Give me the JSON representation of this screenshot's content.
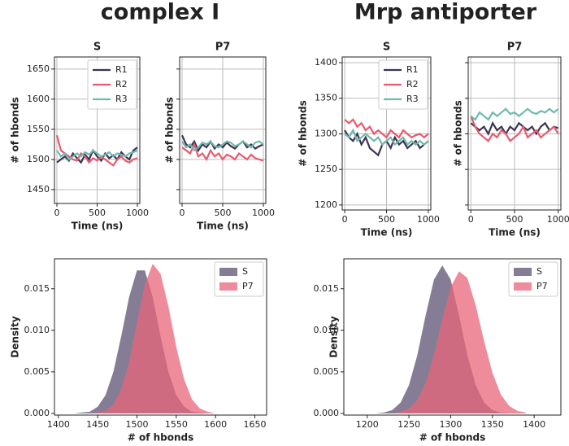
{
  "column_titles": [
    "complex I",
    "Mrp antiporter"
  ],
  "chart_data": [
    {
      "type": "line",
      "title": "S",
      "xlabel": "Time (ns)",
      "ylabel": "# of hbonds",
      "grid": true,
      "legend": "upper right",
      "show_ytick_labels": true,
      "x": [
        0,
        50,
        100,
        150,
        200,
        250,
        300,
        350,
        400,
        450,
        500,
        550,
        600,
        650,
        700,
        750,
        800,
        850,
        900,
        950,
        1000
      ],
      "xlim": [
        -30,
        1030
      ],
      "xticks": [
        0,
        500,
        1000
      ],
      "ylim": [
        1427,
        1670
      ],
      "yticks": [
        1450,
        1500,
        1550,
        1600,
        1650
      ],
      "series": [
        {
          "name": "R1",
          "color": "#3d3452",
          "values": [
            1495,
            1500,
            1505,
            1498,
            1510,
            1502,
            1495,
            1508,
            1500,
            1515,
            1505,
            1498,
            1510,
            1502,
            1507,
            1500,
            1512,
            1505,
            1500,
            1515,
            1520
          ]
        },
        {
          "name": "R2",
          "color": "#e8596e",
          "values": [
            1540,
            1515,
            1510,
            1505,
            1500,
            1498,
            1510,
            1505,
            1495,
            1502,
            1498,
            1505,
            1500,
            1495,
            1490,
            1500,
            1505,
            1498,
            1495,
            1500,
            1502
          ]
        },
        {
          "name": "R3",
          "color": "#6fb9ad",
          "values": [
            1515,
            1505,
            1510,
            1500,
            1505,
            1510,
            1505,
            1512,
            1508,
            1515,
            1510,
            1505,
            1508,
            1512,
            1505,
            1510,
            1508,
            1505,
            1510,
            1512,
            1515
          ]
        }
      ]
    },
    {
      "type": "line",
      "title": "P7",
      "xlabel": "Time (ns)",
      "ylabel": "# of hbonds",
      "grid": true,
      "show_ytick_labels": false,
      "x": [
        0,
        50,
        100,
        150,
        200,
        250,
        300,
        350,
        400,
        450,
        500,
        550,
        600,
        650,
        700,
        750,
        800,
        850,
        900,
        950,
        1000
      ],
      "xlim": [
        -30,
        1030
      ],
      "xticks": [
        0,
        500,
        1000
      ],
      "ylim": [
        1427,
        1670
      ],
      "yticks": [
        1450,
        1500,
        1550,
        1600,
        1650
      ],
      "series": [
        {
          "name": "R1",
          "color": "#3d3452",
          "values": [
            1540,
            1525,
            1520,
            1530,
            1515,
            1525,
            1520,
            1530,
            1518,
            1525,
            1520,
            1528,
            1522,
            1518,
            1525,
            1530,
            1520,
            1525,
            1518,
            1522,
            1525
          ]
        },
        {
          "name": "R2",
          "color": "#e8596e",
          "values": [
            1520,
            1515,
            1510,
            1525,
            1505,
            1510,
            1500,
            1515,
            1505,
            1510,
            1500,
            1508,
            1505,
            1500,
            1510,
            1505,
            1500,
            1508,
            1502,
            1500,
            1498
          ]
        },
        {
          "name": "R3",
          "color": "#6fb9ad",
          "values": [
            1530,
            1520,
            1525,
            1515,
            1520,
            1528,
            1525,
            1530,
            1522,
            1520,
            1525,
            1530,
            1528,
            1522,
            1525,
            1530,
            1525,
            1520,
            1528,
            1530,
            1525
          ]
        }
      ]
    },
    {
      "type": "line",
      "title": "S",
      "xlabel": "Time (ns)",
      "ylabel": "# of hbonds",
      "grid": true,
      "legend": "upper right",
      "show_ytick_labels": true,
      "x": [
        0,
        50,
        100,
        150,
        200,
        250,
        300,
        350,
        400,
        450,
        500,
        550,
        600,
        650,
        700,
        750,
        800,
        850,
        900,
        950,
        1000
      ],
      "xlim": [
        -30,
        1030
      ],
      "xticks": [
        0,
        500,
        1000
      ],
      "ylim": [
        1193,
        1408
      ],
      "yticks": [
        1200,
        1250,
        1300,
        1350,
        1400
      ],
      "series": [
        {
          "name": "R1",
          "color": "#3d3452",
          "values": [
            1305,
            1295,
            1290,
            1300,
            1285,
            1295,
            1280,
            1275,
            1270,
            1285,
            1290,
            1280,
            1295,
            1285,
            1290,
            1280,
            1285,
            1290,
            1280,
            1285,
            1290
          ]
        },
        {
          "name": "R2",
          "color": "#e8596e",
          "values": [
            1320,
            1315,
            1320,
            1310,
            1315,
            1305,
            1310,
            1300,
            1305,
            1300,
            1295,
            1305,
            1300,
            1295,
            1305,
            1300,
            1295,
            1298,
            1300,
            1295,
            1300
          ]
        },
        {
          "name": "R3",
          "color": "#6fb9ad",
          "values": [
            1300,
            1295,
            1305,
            1290,
            1295,
            1300,
            1295,
            1290,
            1295,
            1285,
            1290,
            1295,
            1285,
            1290,
            1295,
            1285,
            1290,
            1285,
            1290,
            1285,
            1290
          ]
        }
      ]
    },
    {
      "type": "line",
      "title": "P7",
      "xlabel": "Time (ns)",
      "ylabel": "# of hbonds",
      "grid": true,
      "show_ytick_labels": false,
      "x": [
        0,
        50,
        100,
        150,
        200,
        250,
        300,
        350,
        400,
        450,
        500,
        550,
        600,
        650,
        700,
        750,
        800,
        850,
        900,
        950,
        1000
      ],
      "xlim": [
        -30,
        1030
      ],
      "xticks": [
        0,
        500,
        1000
      ],
      "ylim": [
        1193,
        1408
      ],
      "yticks": [
        1200,
        1250,
        1300,
        1350,
        1400
      ],
      "series": [
        {
          "name": "R1",
          "color": "#3d3452",
          "values": [
            1315,
            1310,
            1305,
            1310,
            1300,
            1315,
            1305,
            1310,
            1300,
            1310,
            1305,
            1315,
            1310,
            1305,
            1310,
            1300,
            1310,
            1315,
            1305,
            1310,
            1308
          ]
        },
        {
          "name": "R2",
          "color": "#e8596e",
          "values": [
            1325,
            1310,
            1300,
            1295,
            1290,
            1300,
            1295,
            1305,
            1300,
            1290,
            1295,
            1300,
            1310,
            1295,
            1300,
            1305,
            1295,
            1300,
            1305,
            1310,
            1300
          ]
        },
        {
          "name": "R3",
          "color": "#6fb9ad",
          "values": [
            1325,
            1320,
            1330,
            1325,
            1320,
            1330,
            1325,
            1330,
            1335,
            1328,
            1330,
            1325,
            1330,
            1335,
            1330,
            1328,
            1332,
            1330,
            1335,
            1330,
            1335
          ]
        }
      ]
    },
    {
      "type": "area",
      "xlabel": "# of hbonds",
      "ylabel": "Density",
      "grid": false,
      "legend": "upper right",
      "show_ytick_labels": true,
      "x": [
        1420,
        1430,
        1440,
        1450,
        1460,
        1470,
        1480,
        1490,
        1500,
        1510,
        1520,
        1530,
        1540,
        1550,
        1560,
        1570,
        1580,
        1590,
        1600,
        1610,
        1620
      ],
      "xlim": [
        1395,
        1665
      ],
      "xticks": [
        1400,
        1450,
        1500,
        1550,
        1600,
        1650
      ],
      "ylim": [
        -0.0002,
        0.0186
      ],
      "yticks": [
        {
          "value": 0,
          "label": "0.000"
        },
        {
          "value": 0.005,
          "label": "0.005"
        },
        {
          "value": 0.01,
          "label": "0.010"
        },
        {
          "value": 0.015,
          "label": "0.015"
        }
      ],
      "series": [
        {
          "name": "S",
          "color": "#5b5272",
          "values": [
            0,
            0.0001,
            0.0002,
            0.0008,
            0.0022,
            0.005,
            0.0093,
            0.014,
            0.0172,
            0.0172,
            0.014,
            0.0093,
            0.005,
            0.0022,
            0.0008,
            0.0002,
            0.0001,
            0,
            0,
            0,
            0
          ]
        },
        {
          "name": "P7",
          "color": "#e8657a",
          "values": [
            0,
            0,
            0,
            0.0001,
            0.0003,
            0.0011,
            0.0029,
            0.0062,
            0.0109,
            0.0155,
            0.018,
            0.0168,
            0.0129,
            0.008,
            0.0041,
            0.0017,
            0.0006,
            0.0002,
            0,
            0,
            0
          ]
        }
      ]
    },
    {
      "type": "area",
      "xlabel": "# of hbonds",
      "ylabel": "Density",
      "grid": false,
      "legend": "upper right",
      "show_ytick_labels": true,
      "x": [
        1200,
        1210,
        1220,
        1230,
        1240,
        1250,
        1260,
        1270,
        1280,
        1290,
        1300,
        1310,
        1320,
        1330,
        1340,
        1350,
        1360,
        1370,
        1380,
        1390
      ],
      "xlim": [
        1172,
        1432
      ],
      "xticks": [
        1200,
        1250,
        1300,
        1350,
        1400
      ],
      "ylim": [
        -0.0002,
        0.0186
      ],
      "yticks": [
        {
          "value": 0,
          "label": "0.000"
        },
        {
          "value": 0.005,
          "label": "0.005"
        },
        {
          "value": 0.01,
          "label": "0.010"
        },
        {
          "value": 0.015,
          "label": "0.015"
        }
      ],
      "series": [
        {
          "name": "S",
          "color": "#5b5272",
          "values": [
            0,
            0,
            0.0001,
            0.0004,
            0.0013,
            0.0034,
            0.007,
            0.0118,
            0.0161,
            0.0178,
            0.0161,
            0.0118,
            0.007,
            0.0034,
            0.0013,
            0.0004,
            0.0001,
            0,
            0,
            0
          ]
        },
        {
          "name": "P7",
          "color": "#e8657a",
          "values": [
            0,
            0,
            0,
            0,
            0.0002,
            0.0006,
            0.0016,
            0.0037,
            0.0071,
            0.0113,
            0.0152,
            0.0171,
            0.0163,
            0.013,
            0.0087,
            0.0049,
            0.0023,
            0.0009,
            0.0003,
            0.0001
          ]
        }
      ]
    }
  ]
}
